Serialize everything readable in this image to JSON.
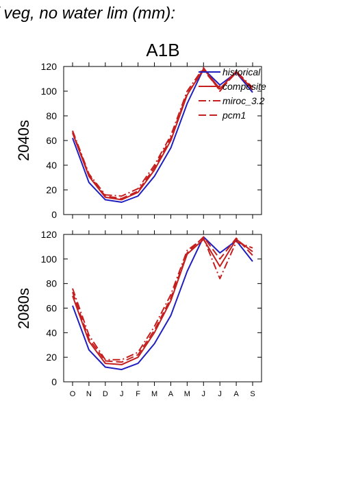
{
  "figure": {
    "title": "f veg, no water lim (mm):",
    "panel_title": "A1B"
  },
  "colors": {
    "historical": "#1f1fbf",
    "scenario": "#c41e1e"
  },
  "legend": [
    "historical",
    "composite",
    "miroc_3.2",
    "pcm1"
  ],
  "chart_data": [
    {
      "type": "line",
      "row_label": "2040s",
      "x": [
        "O",
        "N",
        "D",
        "J",
        "F",
        "M",
        "A",
        "M",
        "J",
        "J",
        "A",
        "S"
      ],
      "ylim": [
        0,
        120
      ],
      "yticks": [
        0,
        20,
        40,
        60,
        80,
        100,
        120
      ],
      "xlabel": "",
      "ylabel": "",
      "series": [
        {
          "name": "historical",
          "style": "solid",
          "color": "#1f1fbf",
          "values": [
            62,
            26,
            12,
            10,
            15,
            31,
            54,
            90,
            118,
            105,
            115,
            99
          ]
        },
        {
          "name": "composite",
          "style": "solid",
          "color": "#c41e1e",
          "values": [
            66,
            31,
            14,
            12,
            18,
            36,
            60,
            97,
            118,
            102,
            116,
            101
          ]
        },
        {
          "name": "miroc_3.2",
          "style": "dashdot",
          "color": "#c41e1e",
          "values": [
            68,
            33,
            16,
            15,
            21,
            40,
            64,
            100,
            119,
            100,
            116,
            103
          ]
        },
        {
          "name": "pcm1",
          "style": "dash",
          "color": "#c41e1e",
          "values": [
            67,
            32,
            15,
            13,
            19,
            38,
            62,
            98,
            117,
            101,
            115,
            102
          ]
        }
      ]
    },
    {
      "type": "line",
      "row_label": "2080s",
      "x": [
        "O",
        "N",
        "D",
        "J",
        "F",
        "M",
        "A",
        "M",
        "J",
        "J",
        "A",
        "S"
      ],
      "ylim": [
        0,
        120
      ],
      "yticks": [
        0,
        20,
        40,
        60,
        80,
        100,
        120
      ],
      "xlabel": "",
      "ylabel": "",
      "series": [
        {
          "name": "historical",
          "style": "solid",
          "color": "#1f1fbf",
          "values": [
            62,
            26,
            12,
            10,
            15,
            31,
            54,
            90,
            118,
            105,
            115,
            98
          ]
        },
        {
          "name": "composite",
          "style": "solid",
          "color": "#c41e1e",
          "values": [
            70,
            33,
            15,
            14,
            20,
            40,
            66,
            104,
            116,
            94,
            116,
            106
          ]
        },
        {
          "name": "miroc_3.2",
          "style": "dashdot",
          "color": "#c41e1e",
          "values": [
            76,
            38,
            18,
            18,
            24,
            45,
            71,
            107,
            117,
            84,
            114,
            109
          ]
        },
        {
          "name": "pcm1",
          "style": "dash",
          "color": "#c41e1e",
          "values": [
            73,
            35,
            17,
            16,
            22,
            42,
            68,
            105,
            118,
            100,
            117,
            103
          ]
        }
      ]
    }
  ]
}
